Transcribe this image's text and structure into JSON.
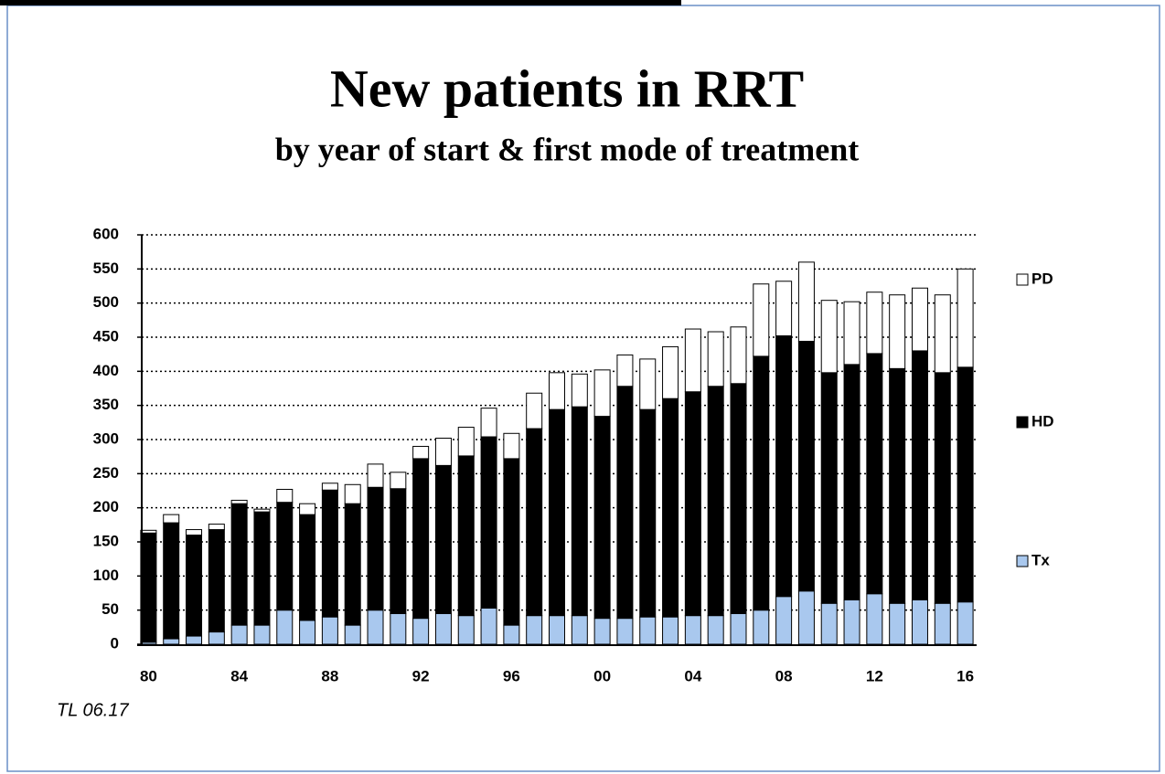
{
  "chart_data": {
    "type": "stacked-bar",
    "title": "New patients in RRT",
    "subtitle": "by year of start & first mode of treatment",
    "note": "TL 06.17",
    "categories": [
      "80",
      null,
      null,
      null,
      "84",
      null,
      null,
      null,
      "88",
      null,
      null,
      null,
      "92",
      null,
      null,
      null,
      "96",
      null,
      null,
      null,
      "00",
      null,
      null,
      null,
      "04",
      null,
      null,
      null,
      "08",
      null,
      null,
      null,
      "12",
      null,
      null,
      null,
      "16"
    ],
    "series": [
      {
        "name": "Tx",
        "color": "#a9c8ee",
        "values": [
          3,
          8,
          12,
          18,
          28,
          28,
          50,
          35,
          40,
          28,
          50,
          45,
          38,
          45,
          42,
          53,
          28,
          42,
          42,
          42,
          38,
          38,
          40,
          40,
          42,
          42,
          45,
          50,
          70,
          78,
          60,
          65,
          74,
          60,
          65,
          60,
          62
        ]
      },
      {
        "name": "HD",
        "color": "#000000",
        "values": [
          160,
          170,
          148,
          150,
          178,
          166,
          158,
          155,
          186,
          178,
          180,
          183,
          234,
          217,
          234,
          251,
          244,
          274,
          302,
          306,
          296,
          340,
          304,
          320,
          328,
          336,
          337,
          372,
          382,
          366,
          338,
          345,
          352,
          344,
          365,
          338,
          344
        ]
      },
      {
        "name": "PD",
        "color": "#ffffff",
        "values": [
          4,
          12,
          8,
          8,
          5,
          4,
          19,
          16,
          10,
          28,
          34,
          24,
          18,
          40,
          42,
          42,
          37,
          52,
          54,
          48,
          68,
          46,
          74,
          76,
          92,
          80,
          83,
          106,
          80,
          116,
          106,
          92,
          90,
          108,
          92,
          114,
          144
        ]
      }
    ],
    "ylim": [
      0,
      600
    ],
    "yticks": [
      0,
      50,
      100,
      150,
      200,
      250,
      300,
      350,
      400,
      450,
      500,
      550,
      600
    ],
    "grid": true
  }
}
